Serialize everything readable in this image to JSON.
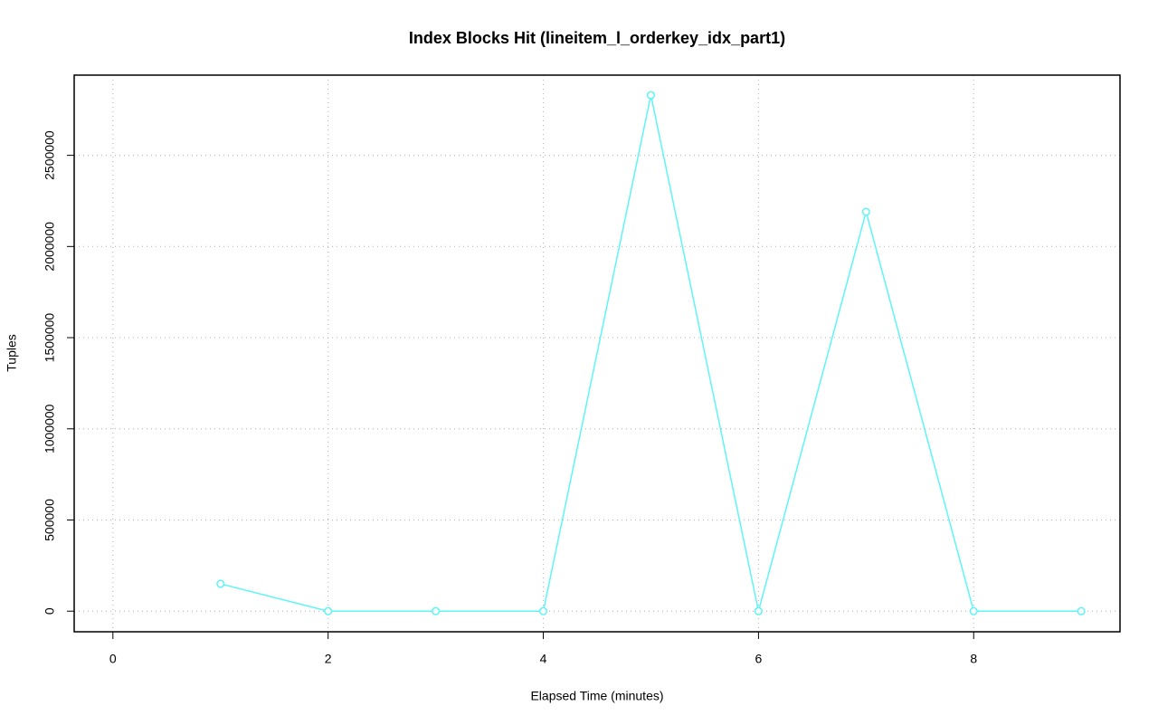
{
  "chart_data": {
    "type": "line",
    "title": "Index Blocks Hit (lineitem_l_orderkey_idx_part1)",
    "x_label": "Elapsed Time (minutes)",
    "y_label": "Tuples",
    "x": [
      1,
      2,
      3,
      4,
      5,
      6,
      7,
      8,
      9
    ],
    "values": [
      150000,
      0,
      0,
      0,
      2830000,
      0,
      2190000,
      0,
      0
    ],
    "color": "#5ff5f5",
    "xlim": [
      -0.36,
      9.36
    ],
    "xticks": [
      0,
      2,
      4,
      6,
      8
    ],
    "ylim": [
      -113069,
      2939801
    ],
    "yticks": [
      0,
      500000,
      1000000,
      1500000,
      2000000,
      2500000
    ],
    "grid": true
  }
}
